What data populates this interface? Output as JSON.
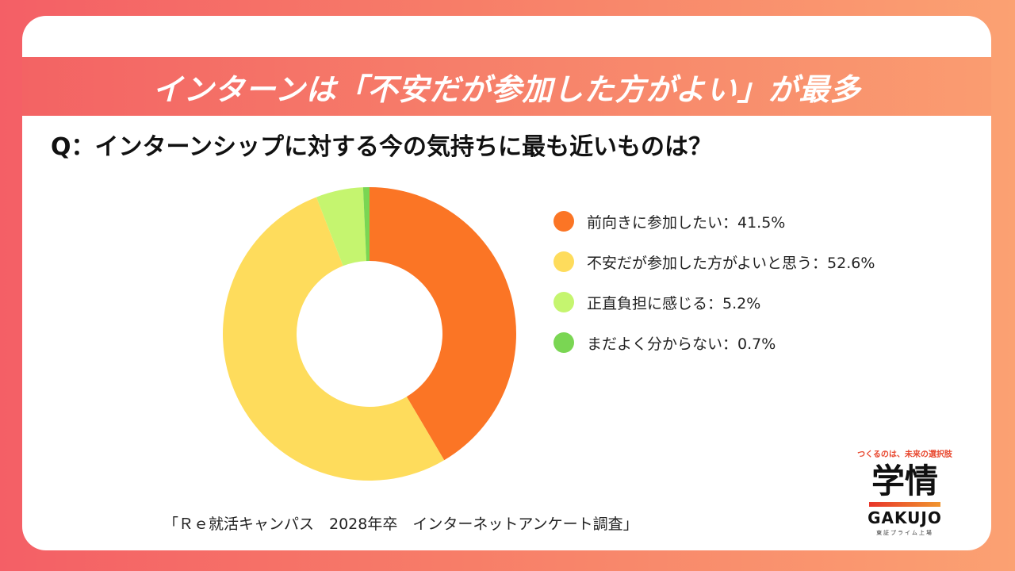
{
  "header": {
    "title": "インターンは「不安だが参加した方がよい」が最多"
  },
  "question": "Q：インターンシップに対する今の気持ちに最も近いものは？",
  "chart_data": {
    "type": "pie",
    "style": "donut",
    "categories": [
      "前向きに参加したい",
      "不安だが参加した方がよいと思う",
      "正直負担に感じる",
      "まだよく分からない"
    ],
    "values": [
      41.5,
      52.6,
      5.2,
      0.7
    ],
    "unit": "%",
    "colors": [
      "#fb7525",
      "#fedc5c",
      "#c5f56f",
      "#7ad653"
    ],
    "legend_position": "right",
    "legend_labels": [
      "前向きに参加したい：41.5%",
      "不安だが参加した方がよいと思う：52.6%",
      "正直負担に感じる：5.2%",
      "まだよく分からない：0.7%"
    ]
  },
  "source": "「Ｒｅ就活キャンパス　2028年卒　インターネットアンケート調査」",
  "logo": {
    "tagline": "つくるのは、未来の選択肢",
    "main": "学情",
    "en": "GAKUJO",
    "sub": "東証プライム上場"
  }
}
